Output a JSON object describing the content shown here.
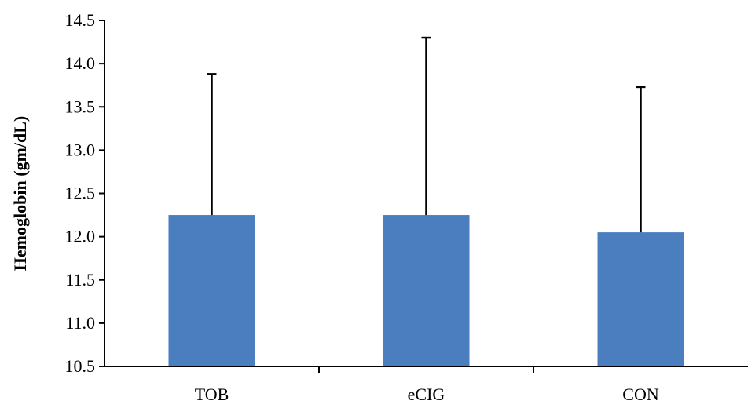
{
  "chart_data": {
    "type": "bar",
    "title": "",
    "xlabel": "",
    "ylabel": "Hemoglobin (gm/dL)",
    "categories": [
      "TOB",
      "eCIG",
      "CON"
    ],
    "values": [
      12.25,
      12.25,
      12.05
    ],
    "error_upper": [
      13.88,
      14.3,
      13.73
    ],
    "ylim": [
      10.5,
      14.5
    ],
    "yticks": [
      "10.5",
      "11.0",
      "11.5",
      "12.0",
      "12.5",
      "13.0",
      "13.5",
      "14.0",
      "14.5"
    ],
    "bar_color": "#4a7ebf",
    "grid": false,
    "legend": "none"
  }
}
